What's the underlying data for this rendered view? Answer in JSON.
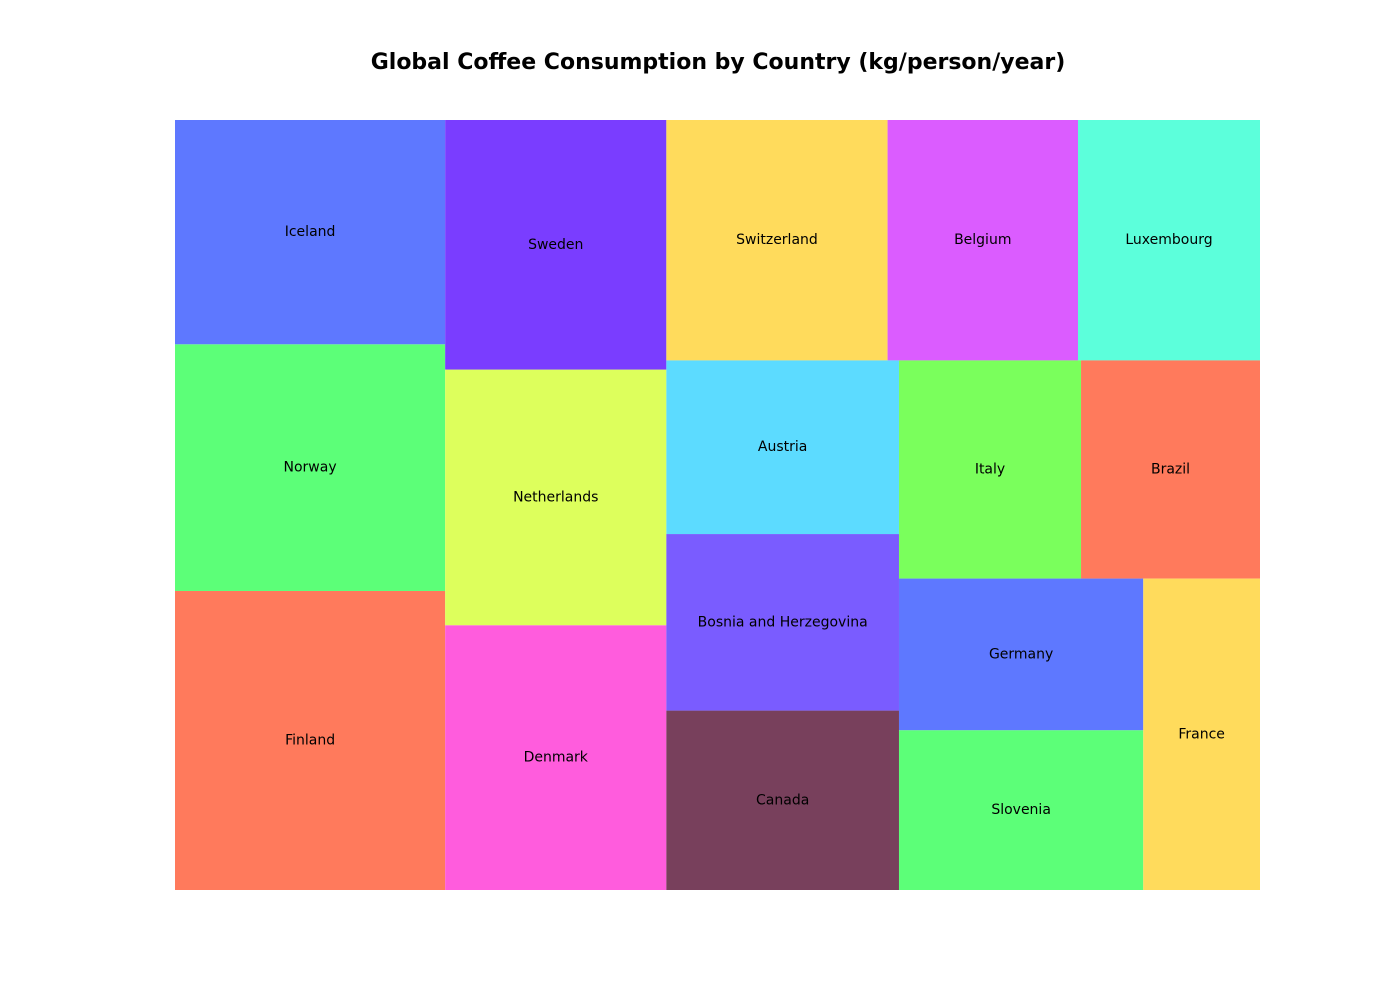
{
  "chart_data": {
    "type": "treemap",
    "title": "Global Coffee Consumption by Country (kg/person/year)",
    "items": [
      {
        "label": "Finland",
        "value": 12.0,
        "color": "#ff7a5c"
      },
      {
        "label": "Norway",
        "value": 9.9,
        "color": "#5cff78"
      },
      {
        "label": "Iceland",
        "value": 9.0,
        "color": "#5e78ff"
      },
      {
        "label": "Denmark",
        "value": 8.7,
        "color": "#ff5cdd"
      },
      {
        "label": "Netherlands",
        "value": 8.4,
        "color": "#ddff5c"
      },
      {
        "label": "Sweden",
        "value": 8.2,
        "color": "#7a3dff"
      },
      {
        "label": "Switzerland",
        "value": 7.9,
        "color": "#ffdb5c"
      },
      {
        "label": "Belgium",
        "value": 6.8,
        "color": "#db5cff"
      },
      {
        "label": "Luxembourg",
        "value": 6.5,
        "color": "#5cffdb"
      },
      {
        "label": "Canada",
        "value": 6.2,
        "color": "#78405c"
      },
      {
        "label": "Bosnia and Herzegovina",
        "value": 6.1,
        "color": "#7a5cff"
      },
      {
        "label": "Austria",
        "value": 6.0,
        "color": "#5cdbff"
      },
      {
        "label": "Italy",
        "value": 5.9,
        "color": "#7aff5c"
      },
      {
        "label": "Brazil",
        "value": 5.8,
        "color": "#ff7a5c"
      },
      {
        "label": "Slovenia",
        "value": 5.8,
        "color": "#5cff78"
      },
      {
        "label": "Germany",
        "value": 5.5,
        "color": "#5e78ff"
      },
      {
        "label": "France",
        "value": 5.4,
        "color": "#ffdb5c"
      }
    ]
  }
}
